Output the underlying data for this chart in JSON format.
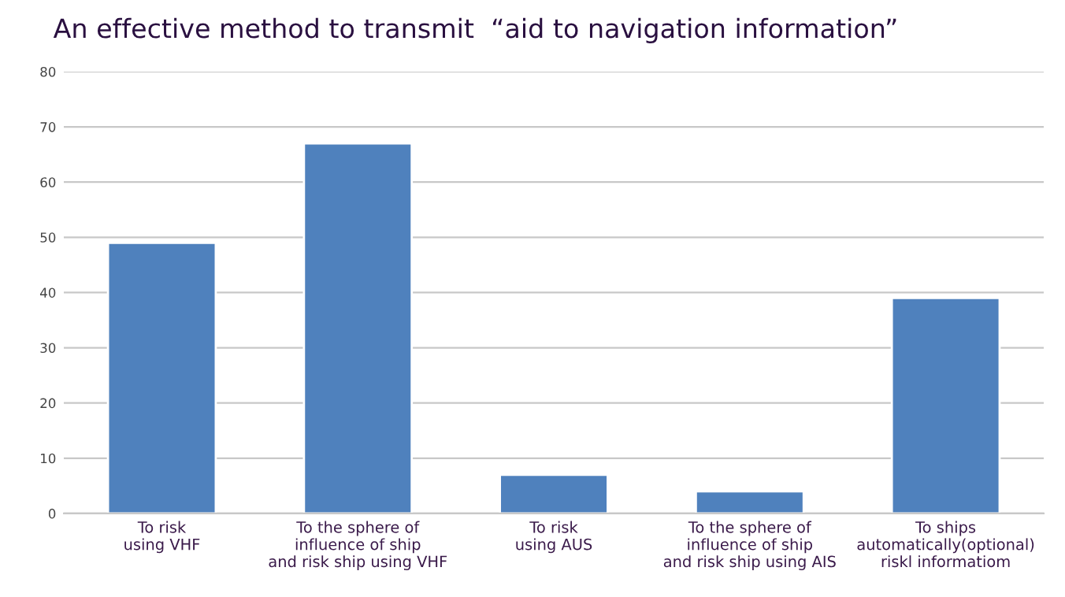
{
  "chart_data": {
    "type": "bar",
    "title": "An effective method to transmit  “aid to navigation information”",
    "categories": [
      "To risk\nusing VHF",
      "To the sphere of\ninfluence of ship\nand risk ship using VHF",
      "To risk\nusing AUS",
      "To the sphere of\ninfluence of ship\nand risk ship using AIS",
      "To ships\nautomatically(optional)\nriskl informatiom"
    ],
    "values": [
      49,
      67,
      7,
      4,
      39
    ],
    "color": "#4f81bd",
    "ylim": [
      0,
      80
    ],
    "yticks": [
      0,
      10,
      20,
      30,
      40,
      50,
      60,
      70,
      80
    ],
    "grid": "y"
  }
}
